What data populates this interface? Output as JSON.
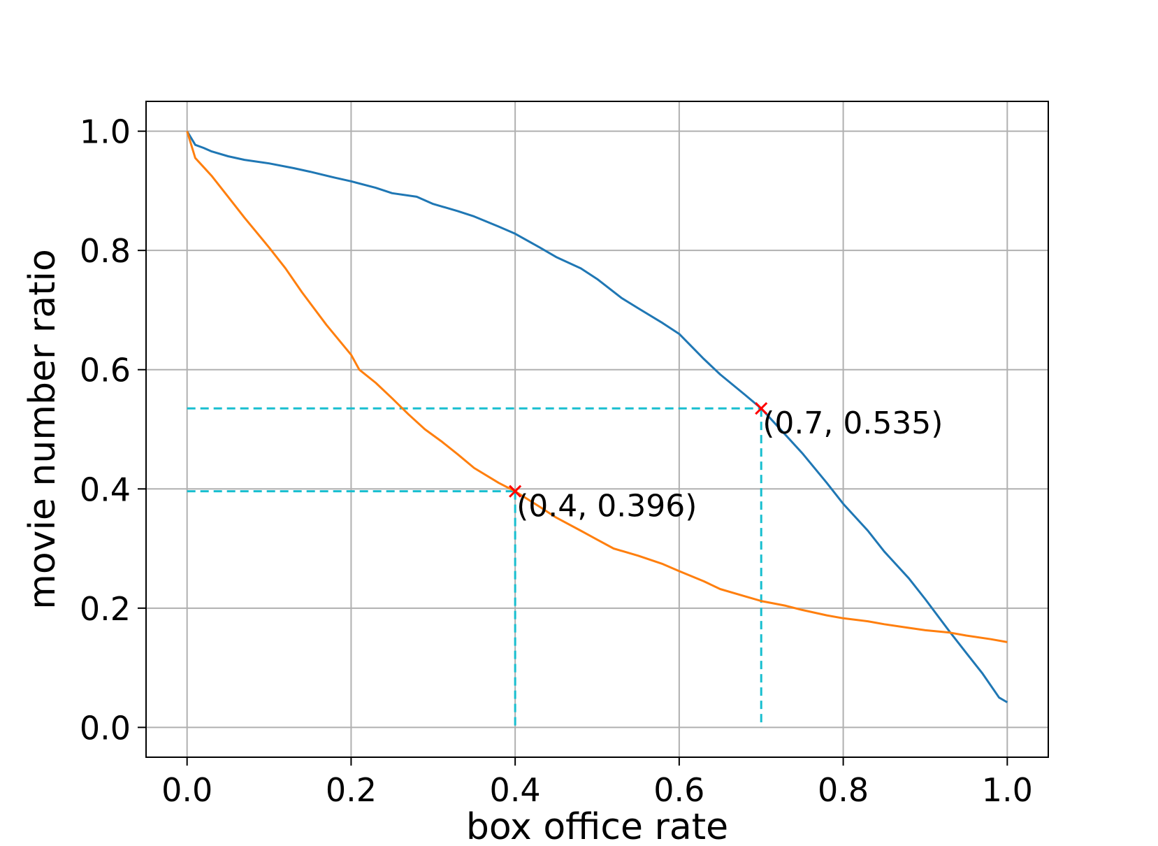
{
  "chart_data": {
    "type": "line",
    "title": "",
    "xlabel": "box office rate",
    "ylabel": "movie number ratio",
    "xlim": [
      -0.05,
      1.05
    ],
    "ylim": [
      -0.05,
      1.05
    ],
    "xticks": [
      {
        "value": 0.0,
        "label": "0.0"
      },
      {
        "value": 0.2,
        "label": "0.2"
      },
      {
        "value": 0.4,
        "label": "0.4"
      },
      {
        "value": 0.6,
        "label": "0.6"
      },
      {
        "value": 0.8,
        "label": "0.8"
      },
      {
        "value": 1.0,
        "label": "1.0"
      }
    ],
    "yticks": [
      {
        "value": 0.0,
        "label": "0.0"
      },
      {
        "value": 0.2,
        "label": "0.2"
      },
      {
        "value": 0.4,
        "label": "0.4"
      },
      {
        "value": 0.6,
        "label": "0.6"
      },
      {
        "value": 0.8,
        "label": "0.8"
      },
      {
        "value": 1.0,
        "label": "1.0"
      }
    ],
    "grid": true,
    "legend": false,
    "series": [
      {
        "color": "#1f77b4",
        "x": [
          0.0,
          0.01,
          0.02,
          0.03,
          0.05,
          0.07,
          0.1,
          0.13,
          0.15,
          0.18,
          0.2,
          0.23,
          0.25,
          0.28,
          0.3,
          0.33,
          0.35,
          0.38,
          0.4,
          0.43,
          0.45,
          0.48,
          0.5,
          0.53,
          0.55,
          0.58,
          0.6,
          0.63,
          0.65,
          0.68,
          0.7,
          0.72,
          0.75,
          0.78,
          0.8,
          0.83,
          0.85,
          0.88,
          0.9,
          0.93,
          0.95,
          0.97,
          0.99,
          1.0
        ],
        "y": [
          1.0,
          0.977,
          0.972,
          0.966,
          0.958,
          0.952,
          0.946,
          0.938,
          0.932,
          0.922,
          0.916,
          0.905,
          0.896,
          0.89,
          0.878,
          0.866,
          0.857,
          0.84,
          0.828,
          0.805,
          0.789,
          0.77,
          0.752,
          0.72,
          0.703,
          0.678,
          0.66,
          0.618,
          0.592,
          0.558,
          0.535,
          0.505,
          0.46,
          0.41,
          0.375,
          0.33,
          0.295,
          0.25,
          0.215,
          0.16,
          0.125,
          0.09,
          0.05,
          0.042
        ]
      },
      {
        "color": "#ff7f0e",
        "x": [
          0.0,
          0.01,
          0.02,
          0.03,
          0.05,
          0.07,
          0.1,
          0.12,
          0.14,
          0.17,
          0.2,
          0.21,
          0.23,
          0.25,
          0.27,
          0.29,
          0.31,
          0.33,
          0.35,
          0.38,
          0.4,
          0.43,
          0.45,
          0.48,
          0.5,
          0.52,
          0.55,
          0.58,
          0.6,
          0.63,
          0.65,
          0.68,
          0.7,
          0.73,
          0.75,
          0.78,
          0.8,
          0.83,
          0.85,
          0.88,
          0.9,
          0.93,
          0.95,
          0.98,
          1.0
        ],
        "y": [
          1.0,
          0.955,
          0.94,
          0.925,
          0.89,
          0.855,
          0.805,
          0.77,
          0.73,
          0.675,
          0.625,
          0.6,
          0.578,
          0.552,
          0.525,
          0.5,
          0.48,
          0.458,
          0.435,
          0.41,
          0.396,
          0.37,
          0.352,
          0.33,
          0.315,
          0.3,
          0.288,
          0.274,
          0.262,
          0.245,
          0.232,
          0.22,
          0.212,
          0.204,
          0.197,
          0.188,
          0.183,
          0.178,
          0.173,
          0.167,
          0.163,
          0.159,
          0.154,
          0.148,
          0.143
        ]
      }
    ],
    "annotations": [
      {
        "x": 0.4,
        "y": 0.396,
        "text": "(0.4, 0.396)"
      },
      {
        "x": 0.7,
        "y": 0.535,
        "text": "(0.7, 0.535)"
      }
    ],
    "reference_line_color": "#17becf",
    "marker_color": "#ff0000"
  }
}
